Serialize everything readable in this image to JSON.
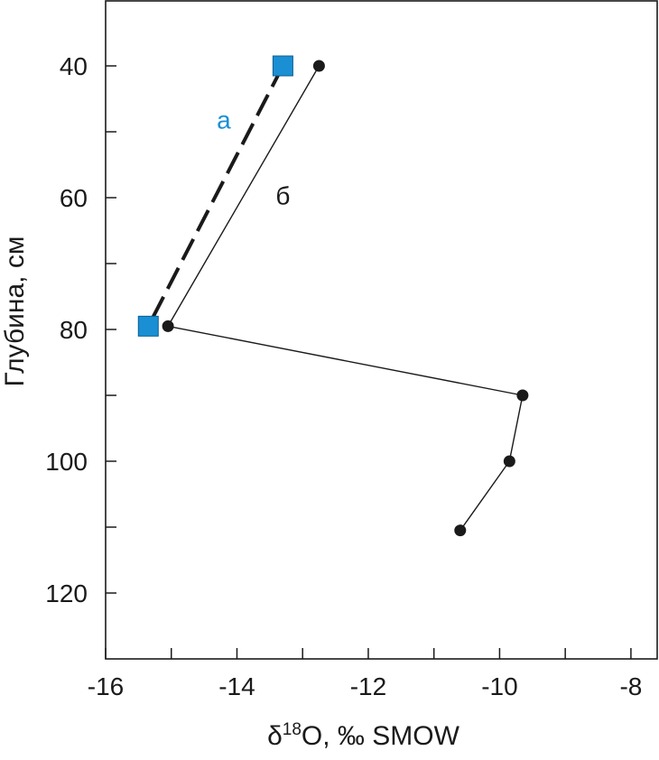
{
  "chart_data": {
    "type": "line",
    "title": "",
    "xlabel": {
      "delta": "δ",
      "superscript": "18",
      "rest": "O, ‰ SMOW"
    },
    "ylabel": "Глубина, см",
    "xlim": [
      -16,
      -7.6
    ],
    "ylim": [
      30,
      130
    ],
    "y_inverted": true,
    "grid": false,
    "x_ticks": [
      -16,
      -15,
      -14,
      -13,
      -12,
      -11,
      -10,
      -9,
      -8
    ],
    "x_tick_labels": [
      {
        "value": -16,
        "label": "-16"
      },
      {
        "value": -14,
        "label": "-14"
      },
      {
        "value": -12,
        "label": "-12"
      },
      {
        "value": -10,
        "label": "-10"
      },
      {
        "value": -8,
        "label": "-8"
      }
    ],
    "y_ticks": [
      40,
      50,
      60,
      70,
      80,
      90,
      100,
      110,
      120
    ],
    "y_tick_labels": [
      {
        "value": 40,
        "label": "40"
      },
      {
        "value": 60,
        "label": "60"
      },
      {
        "value": 80,
        "label": "80"
      },
      {
        "value": 100,
        "label": "100"
      },
      {
        "value": 120,
        "label": "120"
      }
    ],
    "series": [
      {
        "name": "а",
        "color": "#1a8fd4",
        "line_color": "#1a1a1a",
        "line_style": "dashed",
        "marker": "square",
        "points": [
          {
            "x": -13.3,
            "y": 40
          },
          {
            "x": -15.35,
            "y": 79.5
          }
        ]
      },
      {
        "name": "б",
        "color": "#1a1a1a",
        "line_color": "#1a1a1a",
        "line_style": "solid",
        "marker": "circle",
        "points": [
          {
            "x": -12.75,
            "y": 40
          },
          {
            "x": -15.05,
            "y": 79.5
          },
          {
            "x": -9.65,
            "y": 90
          },
          {
            "x": -9.85,
            "y": 100
          },
          {
            "x": -10.6,
            "y": 110.5
          }
        ]
      }
    ]
  }
}
